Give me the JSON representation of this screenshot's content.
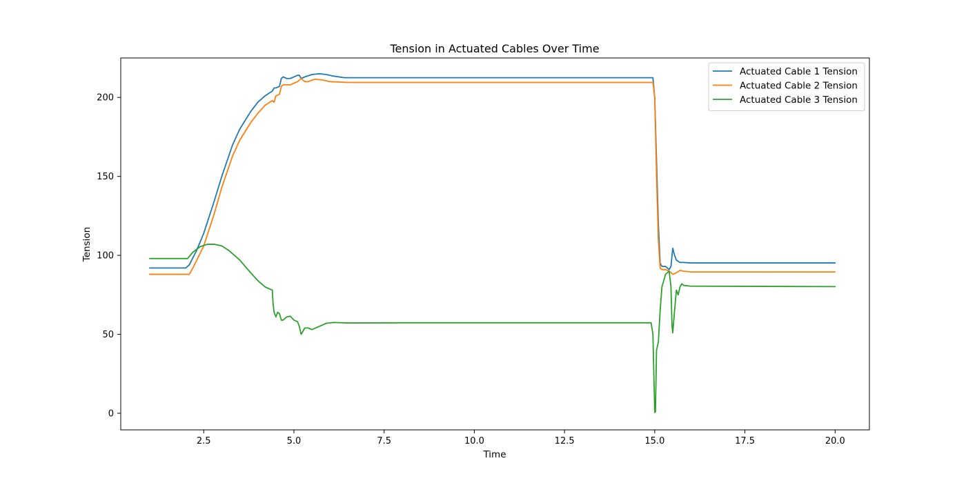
{
  "chart_data": {
    "type": "line",
    "title": "Tension in Actuated Cables Over Time",
    "xlabel": "Time",
    "ylabel": "Tension",
    "xlim": [
      0.2,
      20.95
    ],
    "ylim": [
      -10.5,
      225
    ],
    "xticks": [
      2.5,
      5.0,
      7.5,
      10.0,
      12.5,
      15.0,
      17.5,
      20.0
    ],
    "xtick_labels": [
      "2.5",
      "5.0",
      "7.5",
      "10.0",
      "12.5",
      "15.0",
      "17.5",
      "20.0"
    ],
    "yticks": [
      0,
      50,
      100,
      150,
      200
    ],
    "ytick_labels": [
      "0",
      "50",
      "100",
      "150",
      "200"
    ],
    "grid": false,
    "legend_position": "top-right",
    "series": [
      {
        "name": "Actuated Cable 1 Tension",
        "color": "#1f77b4",
        "x": [
          1.0,
          2.0,
          2.1,
          2.3,
          2.5,
          2.8,
          3.0,
          3.3,
          3.5,
          3.8,
          4.0,
          4.2,
          4.4,
          4.45,
          4.5,
          4.6,
          4.65,
          4.7,
          4.8,
          4.9,
          5.0,
          5.1,
          5.15,
          5.2,
          5.3,
          5.5,
          5.7,
          5.9,
          6.1,
          6.4,
          7.0,
          10.0,
          14.0,
          14.95,
          15.0,
          15.05,
          15.1,
          15.15,
          15.2,
          15.3,
          15.4,
          15.45,
          15.5,
          15.55,
          15.6,
          15.7,
          15.8,
          16.0,
          20.0
        ],
        "y": [
          92,
          92,
          94,
          103,
          114,
          135,
          150,
          170,
          180,
          191,
          197,
          201,
          204,
          206,
          206,
          207,
          212,
          213,
          212,
          212,
          213,
          214,
          214,
          212,
          213,
          214.5,
          215,
          214.5,
          213.5,
          212.5,
          212.5,
          212.5,
          212.5,
          212.5,
          200,
          160,
          120,
          95,
          93,
          93,
          91,
          93,
          104.5,
          100,
          97,
          95.5,
          95.5,
          95.2,
          95.2
        ]
      },
      {
        "name": "Actuated Cable 2 Tension",
        "color": "#ff7f0e",
        "x": [
          1.0,
          2.1,
          2.2,
          2.5,
          2.8,
          3.0,
          3.3,
          3.5,
          3.8,
          4.0,
          4.2,
          4.4,
          4.45,
          4.5,
          4.6,
          4.65,
          4.7,
          4.8,
          4.9,
          5.0,
          5.1,
          5.2,
          5.3,
          5.4,
          5.5,
          5.6,
          5.8,
          6.0,
          6.5,
          10.0,
          14.0,
          14.95,
          15.0,
          15.05,
          15.1,
          15.15,
          15.2,
          15.3,
          15.4,
          15.5,
          15.6,
          15.7,
          15.8,
          16.0,
          20.0
        ],
        "y": [
          88,
          88,
          92,
          106,
          127,
          143,
          163,
          173,
          184,
          190,
          195,
          198,
          197,
          201,
          202,
          207,
          208,
          208,
          208,
          209,
          210,
          212,
          210,
          210,
          211,
          211.5,
          211,
          210,
          209.5,
          209.5,
          209.5,
          209.5,
          200,
          150,
          110,
          92,
          91,
          91,
          90,
          88,
          89,
          90.5,
          90,
          89.5,
          89.5
        ]
      },
      {
        "name": "Actuated Cable 3 Tension",
        "color": "#2ca02c",
        "x": [
          1.0,
          2.05,
          2.2,
          2.4,
          2.6,
          2.8,
          3.0,
          3.2,
          3.5,
          3.8,
          4.0,
          4.2,
          4.4,
          4.42,
          4.45,
          4.5,
          4.55,
          4.6,
          4.65,
          4.7,
          4.8,
          4.9,
          5.0,
          5.1,
          5.15,
          5.2,
          5.3,
          5.4,
          5.5,
          5.7,
          5.9,
          6.1,
          6.5,
          8.0,
          14.9,
          14.95,
          15.0,
          15.02,
          15.05,
          15.1,
          15.15,
          15.2,
          15.3,
          15.4,
          15.45,
          15.48,
          15.5,
          15.55,
          15.6,
          15.65,
          15.7,
          15.75,
          15.8,
          16.0,
          20.0
        ],
        "y": [
          98,
          98,
          102,
          105.5,
          107,
          107,
          106,
          103,
          97,
          89,
          84,
          80,
          78,
          70,
          64,
          61,
          64,
          63,
          59,
          59,
          61,
          61.5,
          59,
          58,
          55,
          50,
          54,
          54,
          53,
          55,
          57,
          57.5,
          57.2,
          57.3,
          57.3,
          50,
          0.5,
          1,
          40,
          45,
          65,
          80,
          88,
          90,
          80,
          55,
          51,
          65,
          78,
          75,
          80,
          82,
          81,
          80.5,
          80.2
        ]
      }
    ]
  }
}
